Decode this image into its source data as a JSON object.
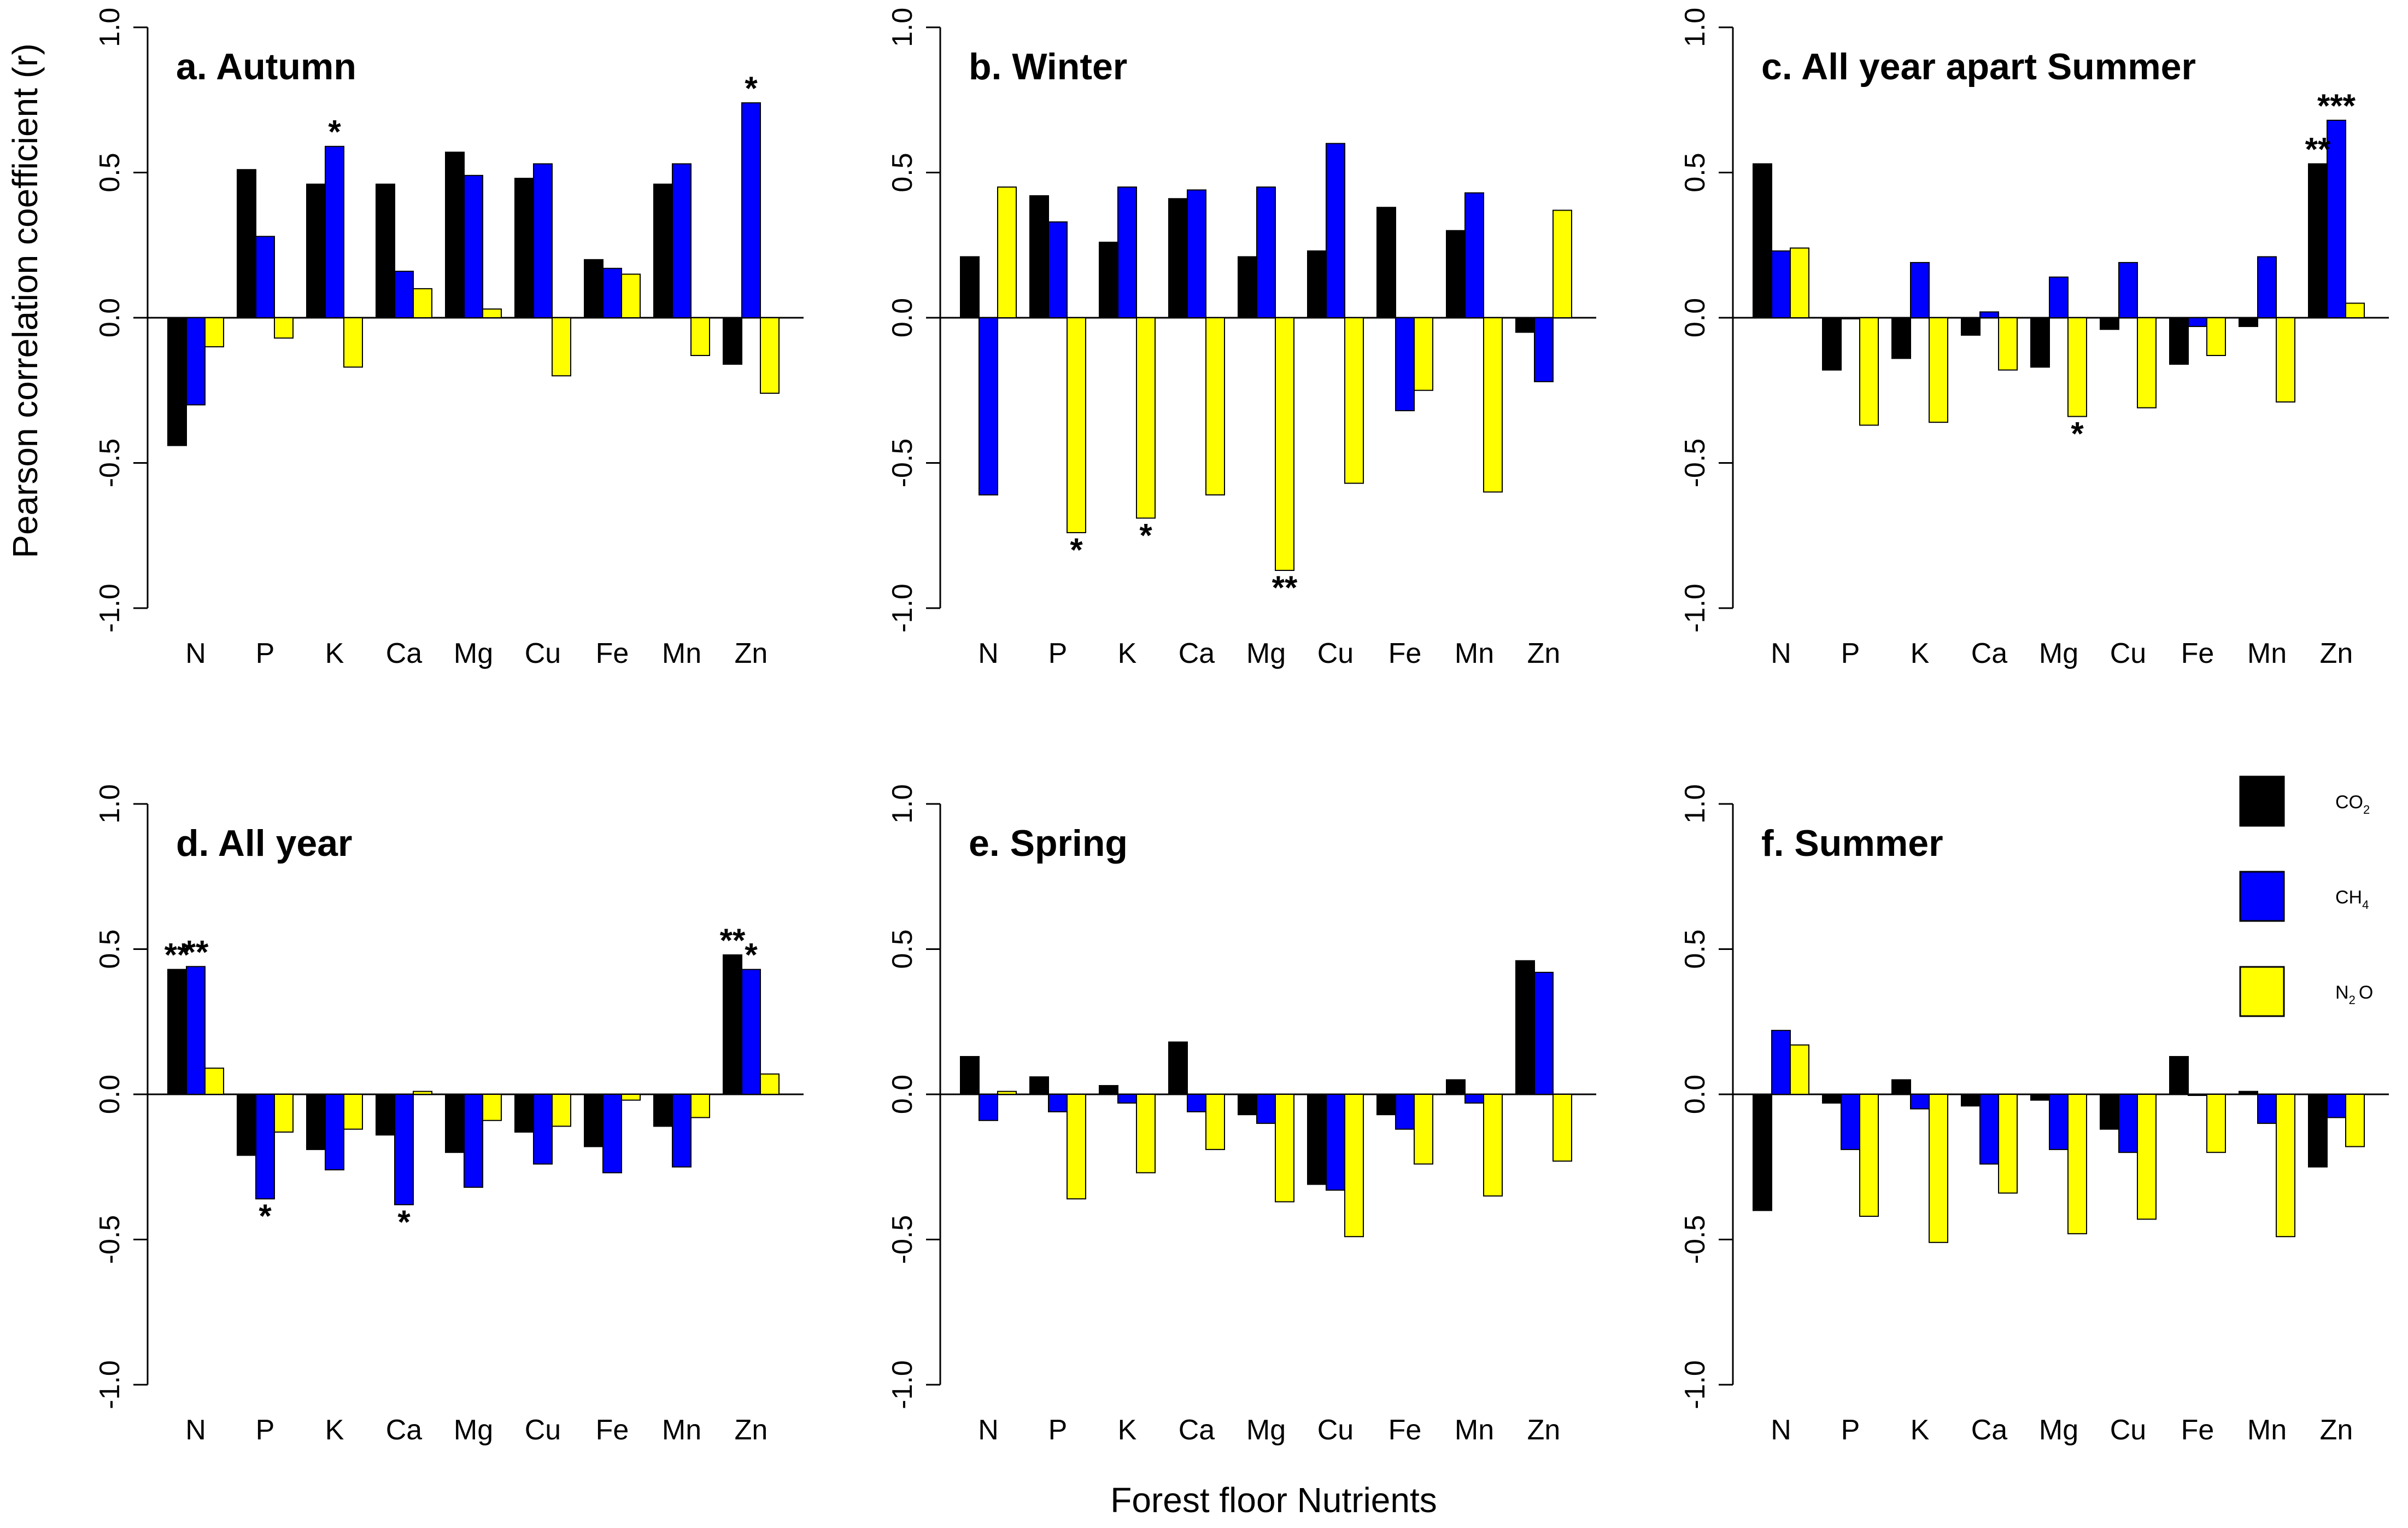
{
  "y_axis_label": "Pearson correlation coefficient (r)",
  "x_axis_label": "Forest floor Nutrients",
  "legend": [
    {
      "label": "CO",
      "sub": "2",
      "color": "#000000"
    },
    {
      "label": "CH",
      "sub": "4",
      "color": "#0000ff"
    },
    {
      "label": "N",
      "sub": "2",
      "suffix": "O",
      "color": "#ffff00"
    }
  ],
  "chart_data": [
    {
      "type": "bar",
      "title": "a. Autumn",
      "categories": [
        "N",
        "P",
        "K",
        "Ca",
        "Mg",
        "Cu",
        "Fe",
        "Mn",
        "Zn"
      ],
      "ylim": [
        -1,
        1
      ],
      "yticks": [
        "1.0",
        "0.5",
        "0.0",
        "-0.5",
        "-1.0"
      ],
      "series": [
        {
          "name": "CO2",
          "color": "#000000",
          "values": [
            -0.44,
            0.51,
            0.46,
            0.46,
            0.57,
            0.48,
            0.2,
            0.46,
            -0.16
          ]
        },
        {
          "name": "CH4",
          "color": "#0000ff",
          "values": [
            -0.3,
            0.28,
            0.59,
            0.16,
            0.49,
            0.53,
            0.17,
            0.53,
            0.74
          ]
        },
        {
          "name": "N2O",
          "color": "#ffff00",
          "values": [
            -0.1,
            -0.07,
            -0.17,
            0.1,
            0.03,
            -0.2,
            0.15,
            -0.13,
            -0.26
          ]
        }
      ],
      "annotations": [
        {
          "category": "K",
          "series": "CH4",
          "text": "*"
        },
        {
          "category": "Zn",
          "series": "CH4",
          "text": "*"
        }
      ]
    },
    {
      "type": "bar",
      "title": "b. Winter",
      "categories": [
        "N",
        "P",
        "K",
        "Ca",
        "Mg",
        "Cu",
        "Fe",
        "Mn",
        "Zn"
      ],
      "ylim": [
        -1,
        1
      ],
      "yticks": [
        "1.0",
        "0.5",
        "0.0",
        "-0.5",
        "-1.0"
      ],
      "series": [
        {
          "name": "CO2",
          "color": "#000000",
          "values": [
            0.21,
            0.42,
            0.26,
            0.41,
            0.21,
            0.23,
            0.38,
            0.3,
            -0.05
          ]
        },
        {
          "name": "CH4",
          "color": "#0000ff",
          "values": [
            -0.61,
            0.33,
            0.45,
            0.44,
            0.45,
            0.6,
            -0.32,
            0.43,
            -0.22
          ]
        },
        {
          "name": "N2O",
          "color": "#ffff00",
          "values": [
            0.45,
            -0.74,
            -0.69,
            -0.61,
            -0.87,
            -0.57,
            -0.25,
            -0.6,
            0.37
          ]
        }
      ],
      "annotations": [
        {
          "category": "P",
          "series": "N2O",
          "text": "*"
        },
        {
          "category": "K",
          "series": "N2O",
          "text": "*"
        },
        {
          "category": "Mg",
          "series": "N2O",
          "text": "**"
        }
      ]
    },
    {
      "type": "bar",
      "title": "c. All year apart Summer",
      "categories": [
        "N",
        "P",
        "K",
        "Ca",
        "Mg",
        "Cu",
        "Fe",
        "Mn",
        "Zn"
      ],
      "ylim": [
        -1,
        1
      ],
      "yticks": [
        "1.0",
        "0.5",
        "0.0",
        "-0.5",
        "-1.0"
      ],
      "series": [
        {
          "name": "CO2",
          "color": "#000000",
          "values": [
            0.53,
            -0.18,
            -0.14,
            -0.06,
            -0.17,
            -0.04,
            -0.16,
            -0.03,
            0.53
          ]
        },
        {
          "name": "CH4",
          "color": "#0000ff",
          "values": [
            0.23,
            0.0,
            0.19,
            0.02,
            0.14,
            0.19,
            -0.03,
            0.21,
            0.68
          ]
        },
        {
          "name": "N2O",
          "color": "#ffff00",
          "values": [
            0.24,
            -0.37,
            -0.36,
            -0.18,
            -0.34,
            -0.31,
            -0.13,
            -0.29,
            0.05
          ]
        }
      ],
      "annotations": [
        {
          "category": "Mg",
          "series": "N2O",
          "text": "*"
        },
        {
          "category": "Zn",
          "series": "CO2",
          "text": "**"
        },
        {
          "category": "Zn",
          "series": "CH4",
          "text": "***"
        }
      ]
    },
    {
      "type": "bar",
      "title": "d. All year",
      "categories": [
        "N",
        "P",
        "K",
        "Ca",
        "Mg",
        "Cu",
        "Fe",
        "Mn",
        "Zn"
      ],
      "ylim": [
        -1,
        1
      ],
      "yticks": [
        "1.0",
        "0.5",
        "0.0",
        "-0.5",
        "-1.0"
      ],
      "series": [
        {
          "name": "CO2",
          "color": "#000000",
          "values": [
            0.43,
            -0.21,
            -0.19,
            -0.14,
            -0.2,
            -0.13,
            -0.18,
            -0.11,
            0.48
          ]
        },
        {
          "name": "CH4",
          "color": "#0000ff",
          "values": [
            0.44,
            -0.36,
            -0.26,
            -0.38,
            -0.32,
            -0.24,
            -0.27,
            -0.25,
            0.43
          ]
        },
        {
          "name": "N2O",
          "color": "#ffff00",
          "values": [
            0.09,
            -0.13,
            -0.12,
            0.01,
            -0.09,
            -0.11,
            -0.02,
            -0.08,
            0.07
          ]
        }
      ],
      "annotations": [
        {
          "category": "N",
          "series": "CO2",
          "text": "**"
        },
        {
          "category": "N",
          "series": "CH4",
          "text": "**"
        },
        {
          "category": "P",
          "series": "CH4",
          "text": "*"
        },
        {
          "category": "Ca",
          "series": "CH4",
          "text": "*"
        },
        {
          "category": "Zn",
          "series": "CO2",
          "text": "**"
        },
        {
          "category": "Zn",
          "series": "CH4",
          "text": "*"
        }
      ]
    },
    {
      "type": "bar",
      "title": "e. Spring",
      "categories": [
        "N",
        "P",
        "K",
        "Ca",
        "Mg",
        "Cu",
        "Fe",
        "Mn",
        "Zn"
      ],
      "ylim": [
        -1,
        1
      ],
      "yticks": [
        "1.0",
        "0.5",
        "0.0",
        "-0.5",
        "-1.0"
      ],
      "series": [
        {
          "name": "CO2",
          "color": "#000000",
          "values": [
            0.13,
            0.06,
            0.03,
            0.18,
            -0.07,
            -0.31,
            -0.07,
            0.05,
            0.46
          ]
        },
        {
          "name": "CH4",
          "color": "#0000ff",
          "values": [
            -0.09,
            -0.06,
            -0.03,
            -0.06,
            -0.1,
            -0.33,
            -0.12,
            -0.03,
            0.42
          ]
        },
        {
          "name": "N2O",
          "color": "#ffff00",
          "values": [
            0.01,
            -0.36,
            -0.27,
            -0.19,
            -0.37,
            -0.49,
            -0.24,
            -0.35,
            -0.23
          ]
        }
      ],
      "annotations": []
    },
    {
      "type": "bar",
      "title": "f. Summer",
      "categories": [
        "N",
        "P",
        "K",
        "Ca",
        "Mg",
        "Cu",
        "Fe",
        "Mn",
        "Zn"
      ],
      "ylim": [
        -1,
        1
      ],
      "yticks": [
        "1.0",
        "0.5",
        "0.0",
        "-0.5",
        "-1.0"
      ],
      "series": [
        {
          "name": "CO2",
          "color": "#000000",
          "values": [
            -0.4,
            -0.03,
            0.05,
            -0.04,
            -0.02,
            -0.12,
            0.13,
            0.01,
            -0.25
          ]
        },
        {
          "name": "CH4",
          "color": "#0000ff",
          "values": [
            0.22,
            -0.19,
            -0.05,
            -0.24,
            -0.19,
            -0.2,
            0.0,
            -0.1,
            -0.08
          ]
        },
        {
          "name": "N2O",
          "color": "#ffff00",
          "values": [
            0.17,
            -0.42,
            -0.51,
            -0.34,
            -0.48,
            -0.43,
            -0.2,
            -0.49,
            -0.18
          ]
        }
      ],
      "annotations": []
    }
  ]
}
